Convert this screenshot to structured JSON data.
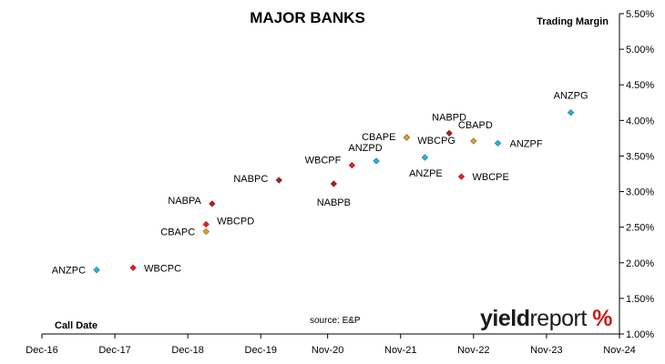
{
  "chart_data": {
    "type": "scatter",
    "title": "MAJOR BANKS",
    "ylabel": "Trading  Margin",
    "xlabel": "Call Date",
    "source": "source: E&P",
    "logo": {
      "part1": "yield",
      "part2": "report",
      "part3": "%"
    },
    "x_ticks": [
      "Dec-16",
      "Dec-17",
      "Dec-18",
      "Dec-19",
      "Nov-20",
      "Nov-21",
      "Nov-22",
      "Nov-23",
      "Nov-24"
    ],
    "y_ticks": [
      "1.00%",
      "1.50%",
      "2.00%",
      "2.50%",
      "3.00%",
      "3.50%",
      "4.00%",
      "4.50%",
      "5.00%",
      "5.50%"
    ],
    "ylim": [
      1.0,
      5.5
    ],
    "grid": false,
    "y_axis_position": "right",
    "series": [
      {
        "color": "#1fb4e6",
        "points": [
          {
            "label": "ANZPC",
            "x": "Sep-17",
            "y": 1.9
          },
          {
            "label": "ANZPD",
            "x": "Jul-21",
            "y": 3.43
          },
          {
            "label": "ANZPE",
            "x": "Mar-22",
            "y": 3.48
          },
          {
            "label": "ANZPF",
            "x": "Mar-23",
            "y": 3.68
          },
          {
            "label": "ANZPG",
            "x": "Mar-24",
            "y": 4.11
          }
        ]
      },
      {
        "color": "#ee1c1c",
        "points": [
          {
            "label": "WBCPC",
            "x": "Mar-18",
            "y": 1.93
          },
          {
            "label": "WBCPD",
            "x": "Mar-19",
            "y": 2.54
          },
          {
            "label": "WBCPF",
            "x": "Mar-21",
            "y": 3.37
          },
          {
            "label": "WBCPG",
            "x": "Dec-21",
            "y": 3.76
          },
          {
            "label": "WBCPE",
            "x": "Sep-22",
            "y": 3.21
          }
        ]
      },
      {
        "color": "#b31b1b",
        "points": [
          {
            "label": "NABPA",
            "x": "Apr-19",
            "y": 2.83
          },
          {
            "label": "NABPC",
            "x": "Mar-20",
            "y": 3.16
          },
          {
            "label": "NABPB",
            "x": "Dec-20",
            "y": 3.11
          },
          {
            "label": "NABPD",
            "x": "Jul-22",
            "y": 3.82
          }
        ]
      },
      {
        "color": "#e0a020",
        "points": [
          {
            "label": "CBAPC",
            "x": "Mar-19",
            "y": 2.44
          },
          {
            "label": "CBAPE",
            "x": "Dec-21",
            "y": 3.76
          },
          {
            "label": "CBAPD",
            "x": "Nov-22",
            "y": 3.71
          }
        ]
      }
    ]
  }
}
